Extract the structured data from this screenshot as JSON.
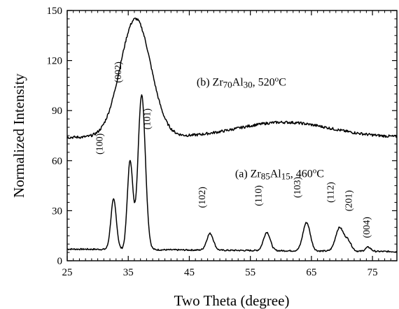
{
  "chart_data": {
    "type": "line",
    "title": "",
    "xlabel": "Two Theta (degree)",
    "ylabel": "Normalized Intensity",
    "xlim": [
      25,
      79
    ],
    "ylim": [
      0,
      150
    ],
    "xticks": [
      25,
      35,
      45,
      55,
      65,
      75
    ],
    "yticks": [
      0,
      30,
      60,
      90,
      120,
      150
    ],
    "grid": false,
    "line_color": "#000000",
    "series": [
      {
        "name": "(a) Zr85Al15, 460oC",
        "label_parts": [
          {
            "t": "(a)  Zr",
            "s": "base"
          },
          {
            "t": "85",
            "s": "sub"
          },
          {
            "t": "Al",
            "s": "base"
          },
          {
            "t": "15",
            "s": "sub"
          },
          {
            "t": ", 460",
            "s": "base"
          },
          {
            "t": "o",
            "s": "sup"
          },
          {
            "t": "C",
            "s": "base"
          }
        ],
        "label_pos": {
          "x": 52.5,
          "y": 50
        },
        "baseline": 7,
        "tail_rise": -1.5,
        "peaks": [
          {
            "x": 32.6,
            "h": 30,
            "w": 0.45,
            "label": "(100)",
            "lx": 30.8,
            "ly": 70
          },
          {
            "x": 35.3,
            "h": 53,
            "w": 0.45,
            "label": "(002)",
            "lx": 33.8,
            "ly": 113
          },
          {
            "x": 37.2,
            "h": 93,
            "w": 0.6,
            "label": "(101)",
            "lx": 38.6,
            "ly": 85
          },
          {
            "x": 48.4,
            "h": 10,
            "w": 0.55,
            "label": "(102)",
            "lx": 47.6,
            "ly": 38
          },
          {
            "x": 57.7,
            "h": 11,
            "w": 0.55,
            "label": "(110)",
            "lx": 56.8,
            "ly": 39
          },
          {
            "x": 64.2,
            "h": 17,
            "w": 0.6,
            "label": "(103)",
            "lx": 63.2,
            "ly": 44
          },
          {
            "x": 69.6,
            "h": 14,
            "w": 0.65,
            "label": "(112)",
            "lx": 68.6,
            "ly": 41
          },
          {
            "x": 71.0,
            "h": 6,
            "w": 0.55,
            "label": "(201)",
            "lx": 71.6,
            "ly": 36
          },
          {
            "x": 74.3,
            "h": 2.5,
            "w": 0.45,
            "label": "(004)",
            "lx": 74.5,
            "ly": 20
          }
        ]
      },
      {
        "name": "(b) Zr70Al30, 520oC",
        "label_parts": [
          {
            "t": "(b) Zr",
            "s": "base"
          },
          {
            "t": "70",
            "s": "sub"
          },
          {
            "t": "Al",
            "s": "base"
          },
          {
            "t": "30",
            "s": "sub"
          },
          {
            "t": ", 520",
            "s": "base"
          },
          {
            "t": "o",
            "s": "sup"
          },
          {
            "t": "C",
            "s": "base"
          }
        ],
        "label_pos": {
          "x": 46.2,
          "y": 105
        },
        "baseline": 74,
        "tail_rise": 0,
        "peaks": [
          {
            "x": 36.2,
            "h": 71,
            "w": 2.5
          },
          {
            "x": 60.5,
            "h": 9,
            "w": 7.5
          }
        ]
      }
    ]
  }
}
